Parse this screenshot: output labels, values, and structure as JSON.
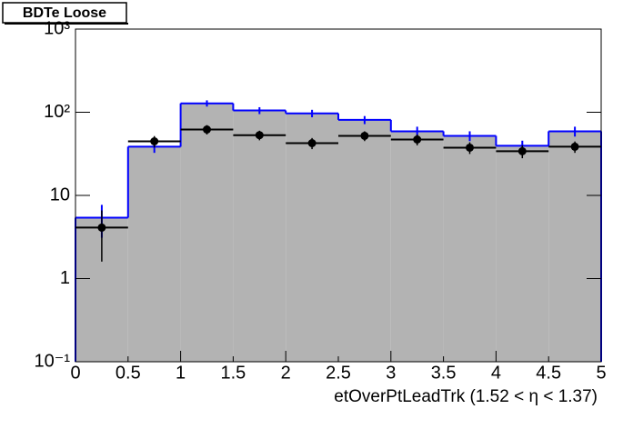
{
  "chart_data": {
    "type": "histogram",
    "title": "BDTe Loose",
    "xlabel": "etOverPtLeadTrk (1.52 <   η < 1.37)",
    "bins": [
      0,
      0.5,
      1,
      1.5,
      2,
      2.5,
      3,
      3.5,
      4,
      4.5,
      5
    ],
    "series": [
      {
        "color": "#0000ff",
        "fill": "#b3b3b3",
        "values": [
          5.4,
          38.5,
          128,
          105,
          97,
          81,
          59,
          52,
          39.5,
          59
        ],
        "errors": [
          2.3,
          6,
          11,
          10,
          10,
          9,
          8,
          7,
          6,
          8
        ]
      },
      {
        "color": "#000000",
        "values": [
          4.1,
          44.7,
          62,
          53,
          42.5,
          52,
          47,
          37.5,
          34,
          38.5
        ],
        "errors": [
          2.5,
          7,
          8,
          7,
          6.5,
          7,
          7,
          6,
          6,
          6
        ]
      }
    ],
    "xlim": [
      0,
      5
    ],
    "xticks": [
      0,
      0.5,
      1,
      1.5,
      2,
      2.5,
      3,
      3.5,
      4,
      4.5,
      5
    ],
    "ylim": [
      0.1,
      1000
    ],
    "log_y": true,
    "yticks": [
      {
        "value": 0.1,
        "label": "10⁻¹"
      },
      1,
      10,
      {
        "value": 100,
        "label": "10²"
      },
      {
        "value": 1000,
        "label": "10³"
      }
    ]
  }
}
